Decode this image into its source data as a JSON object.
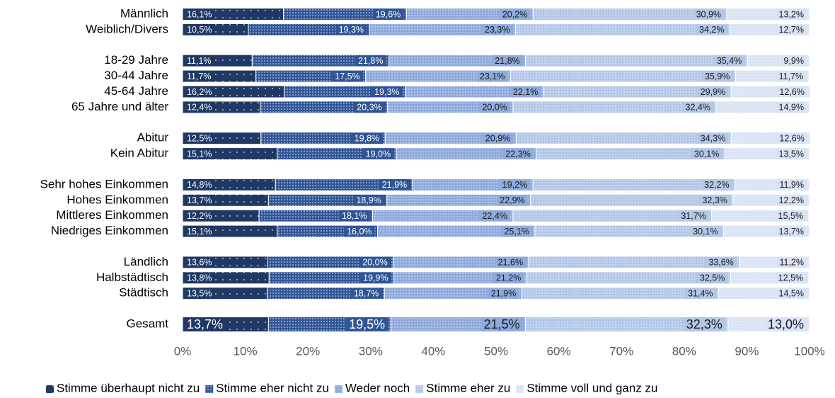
{
  "chart_data": {
    "type": "stacked-bar-horizontal",
    "categories": [
      "Männlich",
      "Weiblich/Divers",
      null,
      "18-29 Jahre",
      "30-44 Jahre",
      "45-64 Jahre",
      "65 Jahre und älter",
      null,
      "Abitur",
      "Kein Abitur",
      null,
      "Sehr hohes Einkommen",
      "Hohes Einkommen",
      "Mittleres Einkommen",
      "Niedriges Einkommen",
      null,
      "Ländlich",
      "Halbstädtisch",
      "Städtisch",
      null,
      "Gesamt"
    ],
    "series": [
      {
        "name": "Stimme überhaupt nicht zu",
        "color": "#1f3864",
        "values": [
          16.1,
          10.5,
          null,
          11.1,
          11.7,
          16.2,
          12.4,
          null,
          12.5,
          15.1,
          null,
          14.8,
          13.7,
          12.2,
          15.1,
          null,
          13.6,
          13.8,
          13.5,
          null,
          13.7
        ],
        "value_labels": [
          "16,1%",
          "10,5%",
          null,
          "11,1%",
          "11,7%",
          "16,2%",
          "12,4%",
          null,
          "12,5%",
          "15,1%",
          null,
          "14,8%",
          "13,7%",
          "12,2%",
          "15,1%",
          null,
          "13,6%",
          "13,8%",
          "13,5%",
          null,
          "13,7%"
        ]
      },
      {
        "name": "Stimme eher nicht zu",
        "color": "#2f5597",
        "values": [
          19.6,
          19.3,
          null,
          21.8,
          17.5,
          19.3,
          20.3,
          null,
          19.8,
          19.0,
          null,
          21.9,
          18.9,
          18.1,
          16.0,
          null,
          20.0,
          19.9,
          18.7,
          null,
          19.5
        ],
        "value_labels": [
          "19,6%",
          "19,3%",
          null,
          "21,8%",
          "17,5%",
          "19,3%",
          "20,3%",
          null,
          "19,8%",
          "19,0%",
          null,
          "21,9%",
          "18,9%",
          "18,1%",
          "16,0%",
          null,
          "20,0%",
          "19,9%",
          "18,7%",
          null,
          "19,5%"
        ]
      },
      {
        "name": "Weder noch",
        "color": "#8faadc",
        "values": [
          20.2,
          23.3,
          null,
          21.8,
          23.1,
          22.1,
          20.0,
          null,
          20.9,
          22.3,
          null,
          19.2,
          22.9,
          22.4,
          25.1,
          null,
          21.6,
          21.2,
          21.9,
          null,
          21.5
        ],
        "value_labels": [
          "20,2%",
          "23,3%",
          null,
          "21,8%",
          "23,1%",
          "22,1%",
          "20,0%",
          null,
          "20,9%",
          "22,3%",
          null,
          "19,2%",
          "22,9%",
          "22,4%",
          "25,1%",
          null,
          "21,6%",
          "21,2%",
          "21,9%",
          null,
          "21,5%"
        ]
      },
      {
        "name": "Stimme eher zu",
        "color": "#b4c7e7",
        "values": [
          30.9,
          34.2,
          null,
          35.4,
          35.9,
          29.9,
          32.4,
          null,
          34.3,
          30.1,
          null,
          32.2,
          32.3,
          31.7,
          30.1,
          null,
          33.6,
          32.5,
          31.4,
          null,
          32.3
        ],
        "value_labels": [
          "30,9%",
          "34,2%",
          null,
          "35,4%",
          "35,9%",
          "29,9%",
          "32,4%",
          null,
          "34,3%",
          "30,1%",
          null,
          "32,2%",
          "32,3%",
          "31,7%",
          "30,1%",
          null,
          "33,6%",
          "32,5%",
          "31,4%",
          null,
          "32,3%"
        ]
      },
      {
        "name": "Stimme voll und ganz zu",
        "color": "#dae3f3",
        "values": [
          13.2,
          12.7,
          null,
          9.9,
          11.7,
          12.6,
          14.9,
          null,
          12.6,
          13.5,
          null,
          11.9,
          12.2,
          15.5,
          13.7,
          null,
          11.2,
          12.5,
          14.5,
          null,
          13.0
        ],
        "value_labels": [
          "13,2%",
          "12,7%",
          null,
          "9,9%",
          "11,7%",
          "12,6%",
          "14,9%",
          null,
          "12,6%",
          "13,5%",
          null,
          "11,9%",
          "12,2%",
          "15,5%",
          "13,7%",
          null,
          "11,2%",
          "12,5%",
          "14,5%",
          null,
          "13,0%"
        ]
      }
    ],
    "xlim": [
      0,
      100
    ],
    "xticks": [
      {
        "value": 0,
        "label": "0%"
      },
      {
        "value": 10,
        "label": "10%"
      },
      {
        "value": 20,
        "label": "20%"
      },
      {
        "value": 30,
        "label": "30%"
      },
      {
        "value": 40,
        "label": "40%"
      },
      {
        "value": 50,
        "label": "50%"
      },
      {
        "value": 60,
        "label": "60%"
      },
      {
        "value": 70,
        "label": "70%"
      },
      {
        "value": 80,
        "label": "80%"
      },
      {
        "value": 90,
        "label": "90%"
      },
      {
        "value": 100,
        "label": "100%"
      }
    ],
    "legend": "bottom"
  }
}
